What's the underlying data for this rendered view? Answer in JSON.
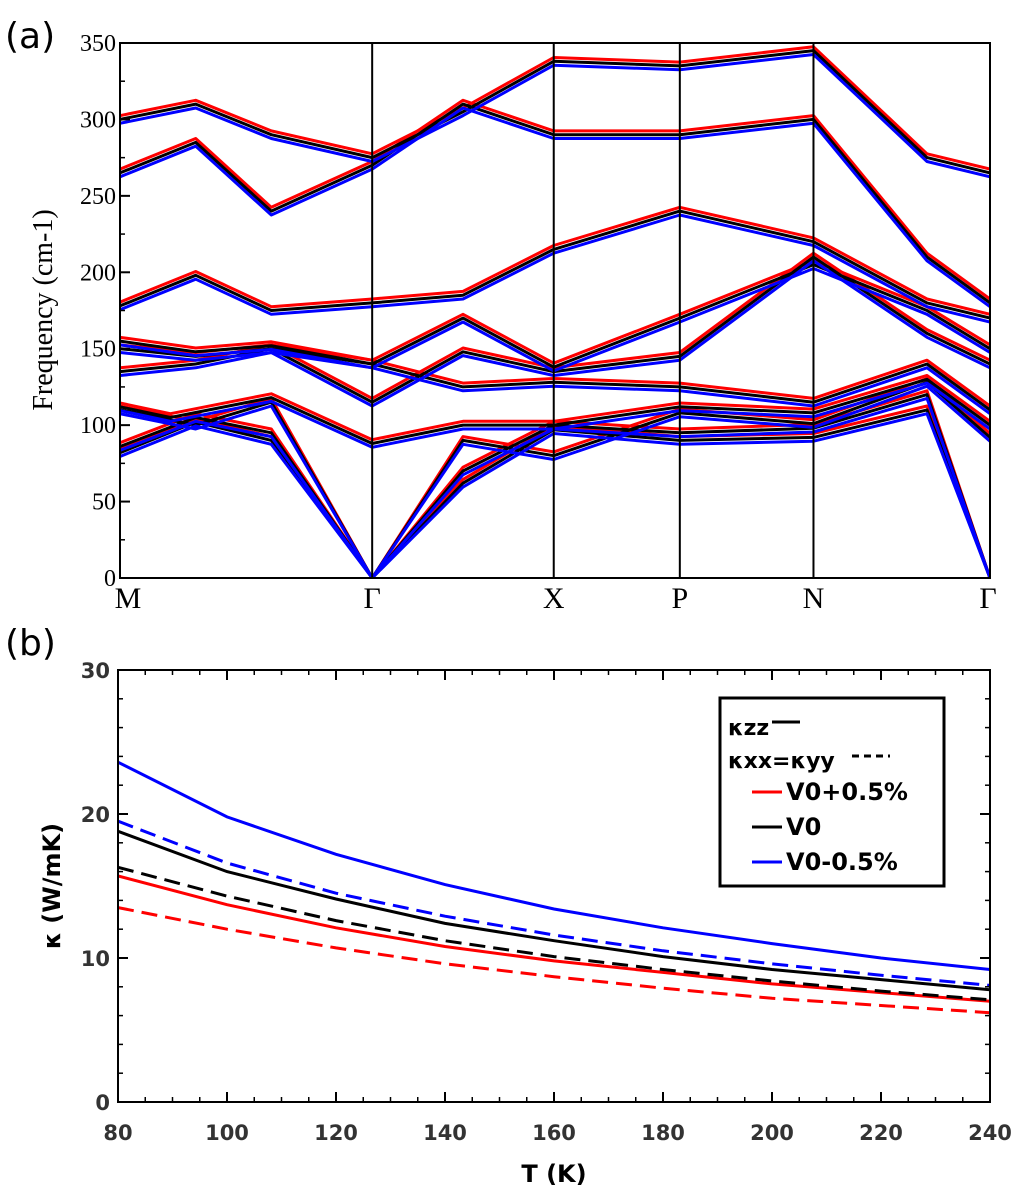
{
  "chart_data": [
    {
      "type": "line",
      "panel_label": "(a)",
      "title": "",
      "ylabel": "Frequency (cm-1)",
      "xlabel": "",
      "ylim": [
        0,
        350
      ],
      "yticks": [
        0,
        50,
        100,
        150,
        200,
        250,
        300,
        350
      ],
      "kpoints": [
        {
          "label": "M",
          "x": 0.0
        },
        {
          "label": "Γ",
          "x": 1.0
        },
        {
          "label": "X",
          "x": 1.72
        },
        {
          "label": "P",
          "x": 2.22
        },
        {
          "label": "N",
          "x": 2.75
        },
        {
          "label": "Γ",
          "x": 3.45
        }
      ],
      "series": [
        {
          "name": "V0+0.5%",
          "color": "#ff0000"
        },
        {
          "name": "V0",
          "color": "#000000"
        },
        {
          "name": "V0-0.5%",
          "color": "#0000ff"
        }
      ],
      "bands": [
        [
          [
            0,
            82
          ],
          [
            0.3,
            102
          ],
          [
            0.6,
            90
          ],
          [
            1.0,
            0
          ],
          [
            1.36,
            62
          ],
          [
            1.72,
            97
          ],
          [
            2.22,
            90
          ],
          [
            2.75,
            92
          ],
          [
            3.2,
            110
          ],
          [
            3.45,
            0
          ]
        ],
        [
          [
            0,
            86
          ],
          [
            0.3,
            105
          ],
          [
            0.6,
            95
          ],
          [
            1.0,
            0
          ],
          [
            1.36,
            70
          ],
          [
            1.72,
            100
          ],
          [
            2.22,
            95
          ],
          [
            2.75,
            98
          ],
          [
            3.2,
            120
          ],
          [
            3.45,
            0
          ]
        ],
        [
          [
            0,
            110
          ],
          [
            0.3,
            100
          ],
          [
            0.6,
            115
          ],
          [
            1.0,
            0
          ],
          [
            1.36,
            90
          ],
          [
            1.72,
            80
          ],
          [
            2.22,
            108
          ],
          [
            2.75,
            101
          ],
          [
            3.2,
            128
          ],
          [
            3.45,
            92
          ]
        ],
        [
          [
            0,
            112
          ],
          [
            0.2,
            105
          ],
          [
            0.6,
            118
          ],
          [
            1.0,
            88
          ],
          [
            1.36,
            100
          ],
          [
            1.72,
            100
          ],
          [
            2.22,
            112
          ],
          [
            2.75,
            108
          ],
          [
            3.2,
            130
          ],
          [
            3.45,
            100
          ]
        ],
        [
          [
            0,
            135
          ],
          [
            0.3,
            140
          ],
          [
            0.6,
            150
          ],
          [
            1.0,
            140
          ],
          [
            1.36,
            125
          ],
          [
            1.72,
            128
          ],
          [
            2.22,
            125
          ],
          [
            2.75,
            115
          ],
          [
            3.2,
            140
          ],
          [
            3.45,
            110
          ]
        ],
        [
          [
            0,
            150
          ],
          [
            0.3,
            145
          ],
          [
            0.6,
            150
          ],
          [
            1.0,
            115
          ],
          [
            1.36,
            148
          ],
          [
            1.72,
            135
          ],
          [
            2.22,
            145
          ],
          [
            2.75,
            210
          ],
          [
            3.2,
            160
          ],
          [
            3.45,
            140
          ]
        ],
        [
          [
            0,
            155
          ],
          [
            0.3,
            148
          ],
          [
            0.6,
            152
          ],
          [
            1.0,
            140
          ],
          [
            1.36,
            170
          ],
          [
            1.72,
            138
          ],
          [
            2.22,
            170
          ],
          [
            2.75,
            205
          ],
          [
            3.2,
            175
          ],
          [
            3.45,
            150
          ]
        ],
        [
          [
            0,
            178
          ],
          [
            0.3,
            198
          ],
          [
            0.6,
            175
          ],
          [
            1.0,
            180
          ],
          [
            1.36,
            185
          ],
          [
            1.72,
            215
          ],
          [
            2.22,
            240
          ],
          [
            2.75,
            220
          ],
          [
            3.2,
            180
          ],
          [
            3.45,
            170
          ]
        ],
        [
          [
            0,
            265
          ],
          [
            0.3,
            285
          ],
          [
            0.6,
            240
          ],
          [
            1.0,
            270
          ],
          [
            1.36,
            310
          ],
          [
            1.72,
            290
          ],
          [
            2.22,
            290
          ],
          [
            2.75,
            300
          ],
          [
            3.2,
            210
          ],
          [
            3.45,
            180
          ]
        ],
        [
          [
            0,
            300
          ],
          [
            0.3,
            310
          ],
          [
            0.6,
            290
          ],
          [
            1.0,
            275
          ],
          [
            1.36,
            305
          ],
          [
            1.72,
            338
          ],
          [
            2.22,
            335
          ],
          [
            2.75,
            345
          ],
          [
            3.2,
            275
          ],
          [
            3.45,
            265
          ]
        ]
      ]
    },
    {
      "type": "line",
      "panel_label": "(b)",
      "title": "",
      "xlabel": "T (K)",
      "ylabel": "κ (W/mK)",
      "xlim": [
        80,
        240
      ],
      "ylim": [
        0,
        30
      ],
      "xticks": [
        80,
        100,
        120,
        140,
        160,
        180,
        200,
        220,
        240
      ],
      "yticks": [
        0,
        10,
        20,
        30
      ],
      "x": [
        80,
        100,
        120,
        140,
        160,
        180,
        200,
        220,
        240
      ],
      "series": [
        {
          "name": "κzz V0+0.5%",
          "color": "#ff0000",
          "dash": "solid",
          "values": [
            15.7,
            13.7,
            12.1,
            10.8,
            9.8,
            9.0,
            8.2,
            7.6,
            7.0
          ]
        },
        {
          "name": "κxx=κyy V0+0.5%",
          "color": "#ff0000",
          "dash": "dashed",
          "values": [
            13.5,
            12.0,
            10.7,
            9.6,
            8.7,
            7.9,
            7.2,
            6.7,
            6.2
          ]
        },
        {
          "name": "κzz V0",
          "color": "#000000",
          "dash": "solid",
          "values": [
            18.8,
            16.0,
            14.1,
            12.4,
            11.2,
            10.1,
            9.2,
            8.5,
            7.8
          ]
        },
        {
          "name": "κxx=κyy V0",
          "color": "#000000",
          "dash": "dashed",
          "values": [
            16.3,
            14.3,
            12.6,
            11.2,
            10.1,
            9.2,
            8.4,
            7.7,
            7.1
          ]
        },
        {
          "name": "κzz V0-0.5%",
          "color": "#0000ff",
          "dash": "solid",
          "values": [
            23.6,
            19.8,
            17.2,
            15.1,
            13.4,
            12.1,
            11.0,
            10.0,
            9.2
          ]
        },
        {
          "name": "κxx=κyy V0-0.5%",
          "color": "#0000ff",
          "dash": "dashed",
          "values": [
            19.5,
            16.6,
            14.5,
            12.9,
            11.6,
            10.5,
            9.6,
            8.8,
            8.1
          ]
        }
      ],
      "legend": {
        "position": "top-right",
        "style_entries": [
          {
            "label": "κzz",
            "dash": "solid"
          },
          {
            "label": "κxx=κyy",
            "dash": "dashed"
          }
        ],
        "color_entries": [
          {
            "label": "V0+0.5%",
            "color": "#ff0000"
          },
          {
            "label": "V0",
            "color": "#000000"
          },
          {
            "label": "V0-0.5%",
            "color": "#0000ff"
          }
        ]
      }
    }
  ]
}
